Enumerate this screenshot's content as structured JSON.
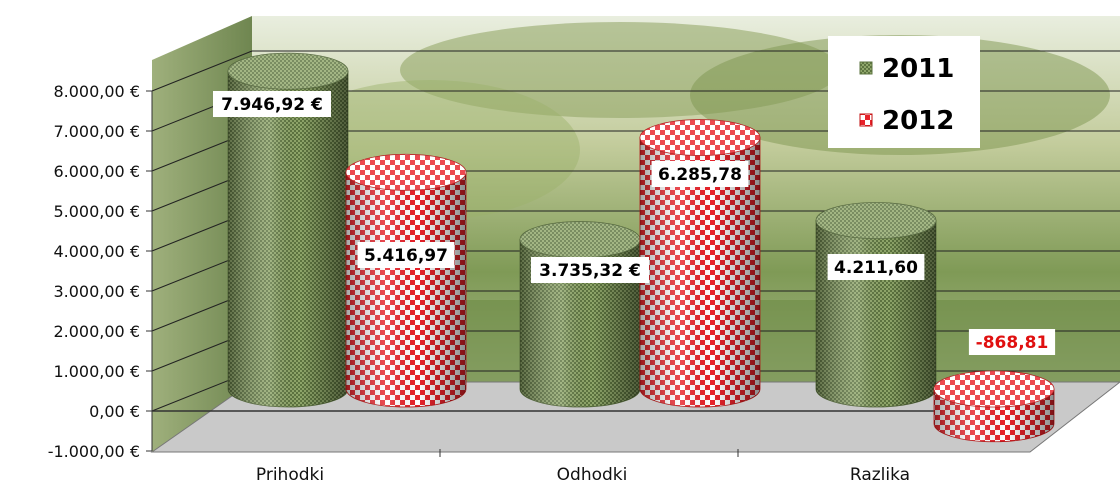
{
  "chart_data": {
    "type": "bar",
    "categories": [
      "Prihodki",
      "Odhodki",
      "Razlika"
    ],
    "series": [
      {
        "name": "2011",
        "values": [
          7946.92,
          3735.32,
          4211.6
        ],
        "labels": [
          "7.946,92 €",
          "3.735,32 €",
          "4.211,60"
        ],
        "color": "#6f8a4a"
      },
      {
        "name": "2012",
        "values": [
          5416.97,
          6285.78,
          -868.81
        ],
        "labels": [
          "5.416,97",
          "6.285,78",
          "-868,81"
        ],
        "color": "#e03030"
      }
    ],
    "y_ticks": [
      "-1.000,00 €",
      "0,00 €",
      "1.000,00 €",
      "2.000,00 €",
      "3.000,00 €",
      "4.000,00 €",
      "5.000,00 €",
      "6.000,00 €",
      "7.000,00 €",
      "8.000,00 €"
    ],
    "ylim": [
      -1000,
      8000
    ],
    "legend_position": "top-right",
    "grid": true,
    "negative_label_color": "#e01010"
  }
}
